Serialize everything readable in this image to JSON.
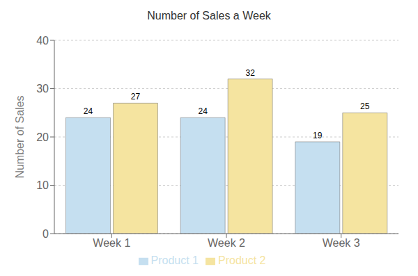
{
  "chart_data": {
    "type": "bar",
    "title": "Number of Sales a Week",
    "ylabel": "Number of Sales",
    "categories": [
      "Week 1",
      "Week 2",
      "Week 3"
    ],
    "series": [
      {
        "name": "Product 1",
        "color": "#c5dff0",
        "values": [
          24,
          24,
          19
        ]
      },
      {
        "name": "Product 2",
        "color": "#f5e4a0",
        "values": [
          27,
          32,
          25
        ]
      }
    ],
    "ylim": [
      0,
      40
    ],
    "yticks": [
      0,
      10,
      20,
      30,
      40
    ],
    "grid": true,
    "legend": "bottom",
    "data_labels": true
  }
}
